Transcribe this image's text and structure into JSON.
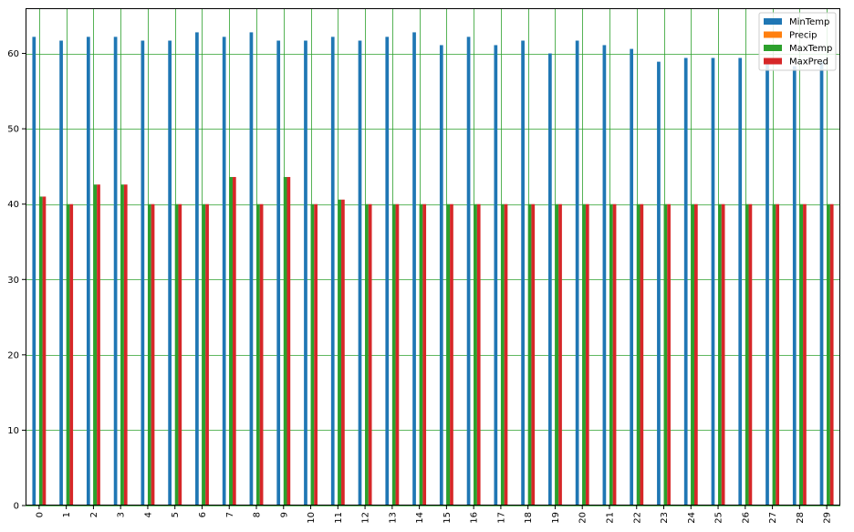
{
  "chart_data": {
    "type": "bar",
    "title": "",
    "xlabel": "",
    "ylabel": "",
    "categories": [
      "0",
      "1",
      "2",
      "3",
      "4",
      "5",
      "6",
      "7",
      "8",
      "9",
      "10",
      "11",
      "12",
      "13",
      "14",
      "15",
      "16",
      "17",
      "18",
      "19",
      "20",
      "21",
      "22",
      "23",
      "24",
      "25",
      "26",
      "27",
      "28",
      "29"
    ],
    "series": [
      {
        "name": "MinTemp",
        "color": "#1f77b4",
        "values": [
          62.2,
          61.7,
          62.2,
          62.2,
          61.7,
          61.7,
          62.8,
          62.2,
          62.8,
          61.7,
          61.7,
          62.2,
          61.7,
          62.2,
          62.8,
          61.1,
          62.2,
          61.1,
          61.7,
          60.0,
          61.7,
          61.1,
          60.6,
          58.9,
          59.4,
          59.4,
          59.4,
          58.9,
          58.3,
          58.9
        ]
      },
      {
        "name": "Precip",
        "color": "#ff7f0e",
        "values": [
          0.0,
          0.0,
          0.0,
          0.0,
          0.0,
          0.0,
          0.0,
          0.0,
          0.0,
          0.0,
          0.0,
          0.0,
          0.0,
          0.0,
          0.0,
          0.0,
          0.0,
          0.0,
          0.0,
          0.0,
          0.0,
          0.0,
          0.0,
          0.0,
          0.0,
          0.0,
          0.0,
          0.0,
          0.0,
          0.0
        ]
      },
      {
        "name": "MaxTemp",
        "color": "#2ca02c",
        "values": [
          41.0,
          40.0,
          42.6,
          42.6,
          40.0,
          40.0,
          40.0,
          43.6,
          40.0,
          43.6,
          40.0,
          40.6,
          40.0,
          40.0,
          40.0,
          40.0,
          40.0,
          40.0,
          40.0,
          40.0,
          40.0,
          40.0,
          40.0,
          40.0,
          40.0,
          40.0,
          40.0,
          40.0,
          40.0,
          40.0
        ]
      },
      {
        "name": "MaxPred",
        "color": "#d62728",
        "values": [
          41.0,
          40.0,
          42.6,
          42.6,
          40.0,
          40.0,
          40.0,
          43.6,
          40.0,
          43.6,
          40.0,
          40.6,
          40.0,
          40.0,
          40.0,
          40.0,
          40.0,
          40.0,
          40.0,
          40.0,
          40.0,
          40.0,
          40.0,
          40.0,
          40.0,
          40.0,
          40.0,
          40.0,
          40.0,
          40.0
        ]
      }
    ],
    "ylim": [
      0,
      66
    ],
    "yticks": [
      0,
      10,
      20,
      30,
      40,
      50,
      60
    ],
    "grid": true,
    "grid_color": "#2ca02c",
    "legend_position": "top-right"
  }
}
